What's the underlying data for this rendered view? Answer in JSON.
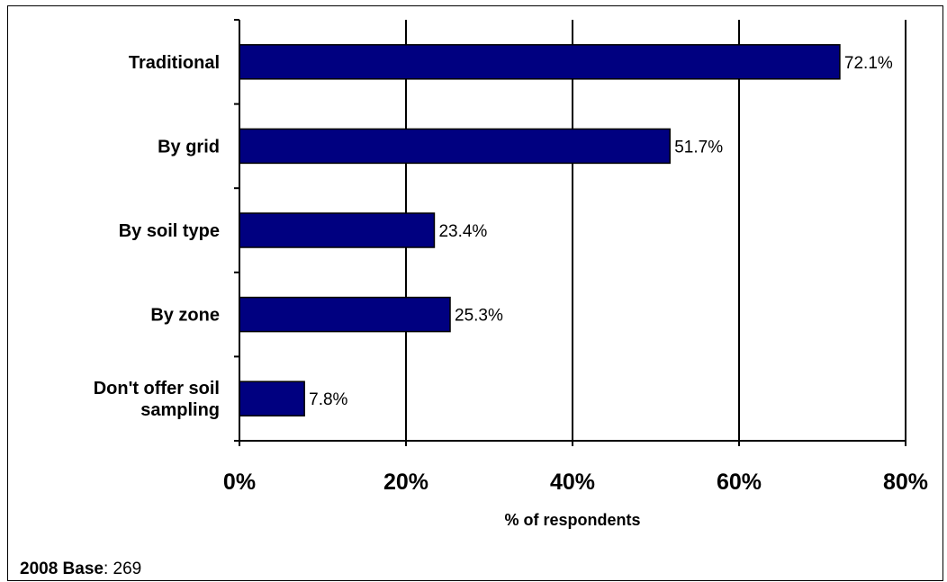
{
  "chart_data": {
    "type": "bar",
    "orientation": "horizontal",
    "categories": [
      [
        "Traditional"
      ],
      [
        "By grid"
      ],
      [
        "By soil type"
      ],
      [
        "By zone"
      ],
      [
        "Don't offer soil",
        "sampling"
      ]
    ],
    "values": [
      72.1,
      51.7,
      23.4,
      25.3,
      7.8
    ],
    "value_labels": [
      "72.1%",
      "51.7%",
      "23.4%",
      "25.3%",
      "7.8%"
    ],
    "xlabel": "% of respondents",
    "xlim": [
      0,
      80
    ],
    "x_ticks": [
      0,
      20,
      40,
      60,
      80
    ],
    "x_tick_labels": [
      "0%",
      "20%",
      "40%",
      "60%",
      "80%"
    ],
    "grid": "vertical",
    "bar_color": "#000080"
  },
  "footnote": {
    "label": "2008 Base",
    "value": ": 269"
  }
}
